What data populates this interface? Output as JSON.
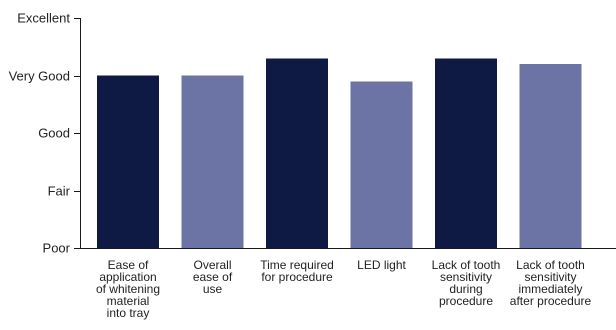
{
  "chart_data": {
    "type": "bar",
    "title": "",
    "xlabel": "",
    "ylabel": "",
    "ylim": [
      0,
      4
    ],
    "y_ticks": [
      {
        "value": 0,
        "label": "Poor"
      },
      {
        "value": 1,
        "label": "Fair"
      },
      {
        "value": 2,
        "label": "Good"
      },
      {
        "value": 3,
        "label": "Very Good"
      },
      {
        "value": 4,
        "label": "Excellent"
      }
    ],
    "grid": false,
    "categories": [
      "Ease of application of whitening material into tray",
      "Overall ease of use",
      "Time required for procedure",
      "LED light",
      "Lack of tooth sensitivity during procedure",
      "Lack of tooth sensitivity immediately after procedure"
    ],
    "category_label_lines": [
      [
        "Ease of",
        "application",
        "of whitening",
        "material",
        "into tray"
      ],
      [
        "Overall",
        "ease of",
        "use"
      ],
      [
        "Time required",
        "for procedure"
      ],
      [
        "LED light"
      ],
      [
        "Lack of tooth",
        "sensitivity",
        "during",
        "procedure"
      ],
      [
        "Lack of tooth",
        "sensitivity",
        "immediately",
        "after procedure"
      ]
    ],
    "values": [
      3.0,
      3.0,
      3.3,
      2.9,
      3.3,
      3.2
    ],
    "bar_colors": [
      "#0f1a44",
      "#6b74a4",
      "#0f1a44",
      "#6b74a4",
      "#0f1a44",
      "#6b74a4"
    ]
  }
}
